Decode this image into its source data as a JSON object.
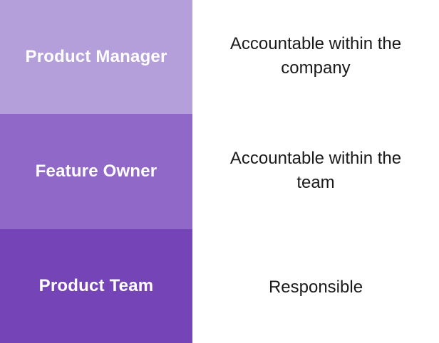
{
  "colors": {
    "row_1_fill": "#b59fdb",
    "row_2_fill": "#9068c7",
    "row_3_fill": "#7545b8"
  },
  "rows": [
    {
      "role": "Product Manager",
      "description": "Accountable within the company"
    },
    {
      "role": "Feature Owner",
      "description": "Accountable within the team"
    },
    {
      "role": "Product Team",
      "description": "Responsible"
    }
  ]
}
